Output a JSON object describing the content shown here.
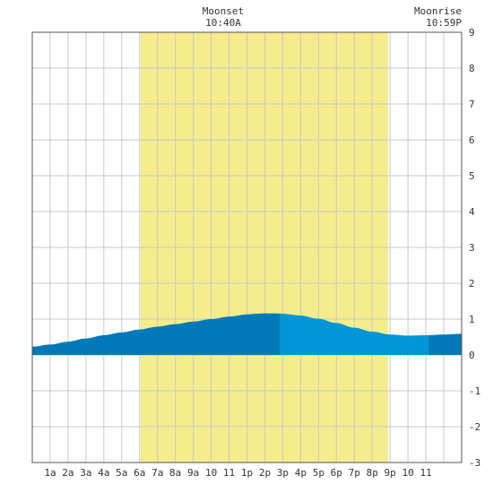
{
  "chart_data": {
    "type": "area",
    "title": "",
    "xlabel": "",
    "ylabel": "",
    "x_tick_labels": [
      "1a",
      "2a",
      "3a",
      "4a",
      "5a",
      "6a",
      "7a",
      "8a",
      "9a",
      "10",
      "11",
      "1p",
      "2p",
      "3p",
      "4p",
      "5p",
      "6p",
      "7p",
      "8p",
      "9p",
      "10",
      "11"
    ],
    "x_range_hours": [
      0,
      24
    ],
    "ylim": [
      -3,
      9
    ],
    "y_ticks": [
      -3,
      -2,
      -1,
      0,
      1,
      2,
      3,
      4,
      5,
      6,
      7,
      8,
      9
    ],
    "y_axis_side": "right",
    "grid": true,
    "daylight_hours": [
      6.05,
      19.9
    ],
    "annotations": [
      {
        "label": "Moonset",
        "time": "10:40A",
        "hour": 10.67
      },
      {
        "label": "Moonrise",
        "time": "10:59P",
        "hour": 22.98
      }
    ],
    "tide_series": {
      "hours": [
        0,
        1,
        2,
        3,
        4,
        5,
        6,
        7,
        8,
        9,
        10,
        11,
        12,
        12.5,
        13,
        13.5,
        14,
        15,
        16,
        17,
        18,
        19,
        20,
        21,
        22,
        23,
        24
      ],
      "height_ft": [
        0.23,
        0.29,
        0.37,
        0.46,
        0.55,
        0.63,
        0.71,
        0.79,
        0.86,
        0.93,
        1.0,
        1.07,
        1.13,
        1.15,
        1.16,
        1.16,
        1.15,
        1.1,
        1.01,
        0.89,
        0.76,
        0.65,
        0.57,
        0.54,
        0.55,
        0.57,
        0.59
      ],
      "color_segments": [
        {
          "from_hour": 0,
          "to_hour": 13.85,
          "color": "#0079b8"
        },
        {
          "from_hour": 13.85,
          "to_hour": 22.15,
          "color": "#0096d8"
        },
        {
          "from_hour": 22.15,
          "to_hour": 24,
          "color": "#0079b8"
        }
      ]
    },
    "colors": {
      "daylight": "#f5ec8c",
      "grid": "#c8c8c8",
      "border": "#555555"
    }
  }
}
